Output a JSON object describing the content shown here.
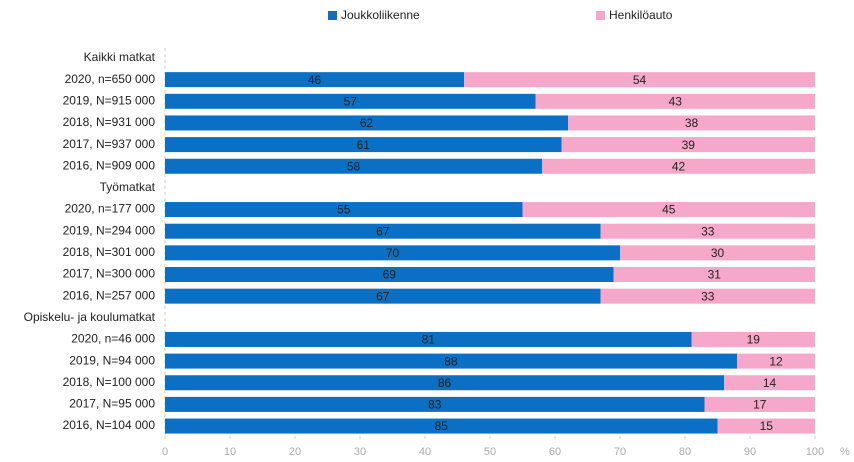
{
  "chart_data": {
    "type": "bar",
    "orientation": "horizontal",
    "stacked": true,
    "categories": [
      "Kaikki matkat",
      "2020, n=650 000",
      "2019, N=915 000",
      "2018, N=931 000",
      "2017, N=937 000",
      "2016, N=909 000",
      "Työmatkat",
      "2020, n=177 000",
      "2019, N=294 000",
      "2018, N=301 000",
      "2017, N=300 000",
      "2016, N=257 000",
      "Opiskelu- ja koulumatkat",
      "2020, n=46 000",
      "2019, N=94 000",
      "2018, N=100 000",
      "2017, N=95 000",
      "2016, N=104 000"
    ],
    "series": [
      {
        "name": "Joukkoliikenne",
        "color": "#0b6fc4",
        "values": [
          null,
          46,
          57,
          62,
          61,
          58,
          null,
          55,
          67,
          70,
          69,
          67,
          null,
          81,
          88,
          86,
          83,
          85
        ]
      },
      {
        "name": "Henkilöauto",
        "color": "#f5a8c9",
        "values": [
          null,
          54,
          43,
          38,
          39,
          42,
          null,
          45,
          33,
          30,
          31,
          33,
          null,
          19,
          12,
          14,
          17,
          15
        ]
      }
    ],
    "xlim": [
      0,
      100
    ],
    "xticks": [
      0,
      10,
      20,
      30,
      40,
      50,
      60,
      70,
      80,
      90,
      100
    ],
    "x_label": "%",
    "legend": "top",
    "grid": false
  }
}
